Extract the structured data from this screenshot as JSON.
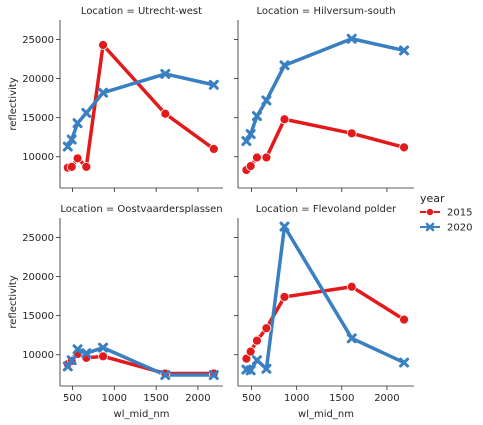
{
  "chart_data": {
    "type": "line",
    "xlabel": "wl_mid_nm",
    "ylabel": "reflectivity",
    "xlim": [
      350,
      2300
    ],
    "ylim": [
      6000,
      27500
    ],
    "x_ticks": [
      500,
      1000,
      1500,
      2000
    ],
    "y_ticks": [
      10000,
      15000,
      20000,
      25000
    ],
    "grid": false,
    "legend": {
      "title": "year",
      "position": "right",
      "entries": [
        {
          "label": "2015",
          "color": "#e31a1c",
          "marker": "circle"
        },
        {
          "label": "2020",
          "color": "#3a7fc1",
          "marker": "x"
        }
      ]
    },
    "x": [
      443,
      490,
      560,
      665,
      865,
      1610,
      2190
    ],
    "panels": [
      {
        "title": "Location = Utrecht-west",
        "series": [
          {
            "name": "2015",
            "values": [
              8600,
              8700,
              9800,
              8700,
              24300,
              15500,
              11000
            ]
          },
          {
            "name": "2020",
            "values": [
              11300,
              12200,
              14300,
              15600,
              18200,
              20600,
              19200
            ]
          }
        ]
      },
      {
        "title": "Location = Hilversum-south",
        "series": [
          {
            "name": "2015",
            "values": [
              8300,
              8800,
              9900,
              9900,
              14800,
              13000,
              11200
            ]
          },
          {
            "name": "2020",
            "values": [
              12000,
              12900,
              15200,
              17200,
              21700,
              25100,
              23600
            ]
          }
        ]
      },
      {
        "title": "Location = Oostvaardersplassen",
        "series": [
          {
            "name": "2015",
            "values": [
              8800,
              9200,
              10100,
              9600,
              9800,
              7600,
              7600
            ]
          },
          {
            "name": "2020",
            "values": [
              8500,
              9300,
              10700,
              10200,
              10900,
              7400,
              7400
            ]
          }
        ]
      },
      {
        "title": "Location = Flevoland polder",
        "series": [
          {
            "name": "2015",
            "values": [
              9500,
              10400,
              11800,
              13400,
              17400,
              18700,
              14500
            ]
          },
          {
            "name": "2020",
            "values": [
              8100,
              8000,
              9300,
              8200,
              26400,
              12100,
              9000
            ]
          }
        ]
      }
    ]
  }
}
